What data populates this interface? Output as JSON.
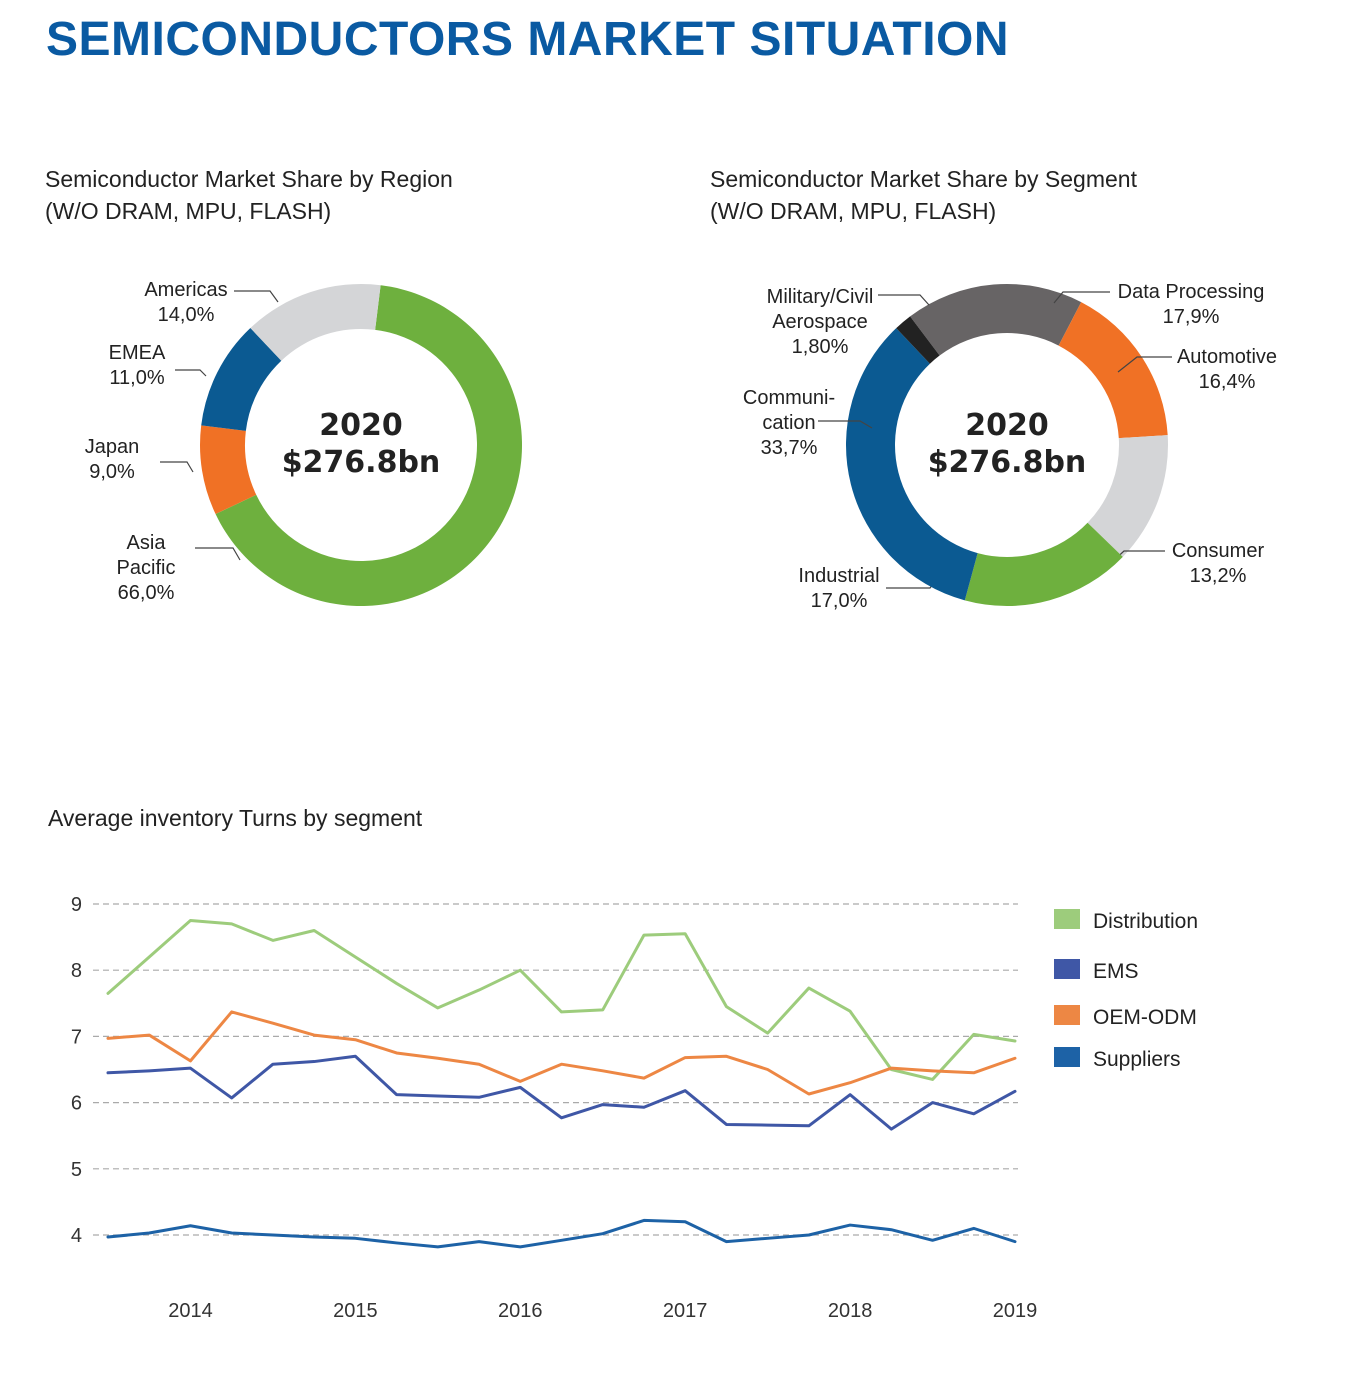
{
  "page_title": "SEMICONDUCTORS MARKET SITUATION",
  "colors": {
    "title": "#0a5aa2",
    "leader": "#444444",
    "grid": "#aaaaaa"
  },
  "chart_data": [
    {
      "type": "pie",
      "title": "Semiconductor Market Share by Region",
      "subtitle": "(W/O DRAM, MPU, FLASH)",
      "center_line1": "2020",
      "center_line2": "$276.8bn",
      "slices": [
        {
          "label_lines": [
            "Asia",
            "Pacific"
          ],
          "value_text": "66,0%",
          "value": 66.0,
          "color": "#6eb03e"
        },
        {
          "label_lines": [
            "Japan"
          ],
          "value_text": "9,0%",
          "value": 9.0,
          "color": "#f07125"
        },
        {
          "label_lines": [
            "EMEA"
          ],
          "value_text": "11,0%",
          "value": 11.0,
          "color": "#0b5a92"
        },
        {
          "label_lines": [
            "Americas"
          ],
          "value_text": "14,0%",
          "value": 14.0,
          "color": "#d4d5d7"
        }
      ]
    },
    {
      "type": "pie",
      "title": "Semiconductor Market Share by Segment",
      "subtitle": "(W/O DRAM, MPU, FLASH)",
      "center_line1": "2020",
      "center_line2": "$276.8bn",
      "slices": [
        {
          "label_lines": [
            "Data Processing"
          ],
          "value_text": "17,9%",
          "value": 17.9,
          "color": "#676465"
        },
        {
          "label_lines": [
            "Automotive"
          ],
          "value_text": "16,4%",
          "value": 16.4,
          "color": "#f07125"
        },
        {
          "label_lines": [
            "Consumer"
          ],
          "value_text": "13,2%",
          "value": 13.2,
          "color": "#d4d5d7"
        },
        {
          "label_lines": [
            "Industrial"
          ],
          "value_text": "17,0%",
          "value": 17.0,
          "color": "#6eb03e"
        },
        {
          "label_lines": [
            "Communi-",
            "cation"
          ],
          "value_text": "33,7%",
          "value": 33.7,
          "color": "#0b5a92"
        },
        {
          "label_lines": [
            "Military/Civil",
            "Aerospace"
          ],
          "value_text": "1,80%",
          "value": 1.8,
          "color": "#222222"
        }
      ]
    },
    {
      "type": "line",
      "title": "Average inventory Turns by segment",
      "xlabel": "",
      "ylabel": "",
      "x_ticks": [
        "2014",
        "2015",
        "2016",
        "2017",
        "2018",
        "2019"
      ],
      "xlim": [
        2013.5,
        2019.0
      ],
      "ylim": [
        4,
        9
      ],
      "y_ticks": [
        "4",
        "5",
        "6",
        "7",
        "8",
        "9"
      ],
      "legend_position": "right",
      "x": [
        2013.5,
        2013.75,
        2014.0,
        2014.25,
        2014.5,
        2014.75,
        2015.0,
        2015.25,
        2015.5,
        2015.75,
        2016.0,
        2016.25,
        2016.5,
        2016.75,
        2017.0,
        2017.25,
        2017.5,
        2017.75,
        2018.0,
        2018.25,
        2018.5,
        2018.75,
        2019.0
      ],
      "series": [
        {
          "name": "Distribution",
          "color": "#9dcc7c",
          "values": [
            7.65,
            8.2,
            8.75,
            8.7,
            8.45,
            8.6,
            8.2,
            7.8,
            7.43,
            7.7,
            8.0,
            7.37,
            7.4,
            8.53,
            8.55,
            7.45,
            7.05,
            7.73,
            7.38,
            6.5,
            6.35,
            7.03,
            6.93
          ]
        },
        {
          "name": "EMS",
          "color": "#3f57a6",
          "values": [
            6.45,
            6.48,
            6.52,
            6.07,
            6.58,
            6.62,
            6.7,
            6.12,
            6.1,
            6.08,
            6.23,
            5.77,
            5.97,
            5.93,
            6.18,
            5.67,
            5.66,
            5.65,
            6.12,
            5.6,
            6.0,
            5.83,
            6.17
          ]
        },
        {
          "name": "OEM-ODM",
          "color": "#ed8744",
          "values": [
            6.97,
            7.02,
            6.63,
            7.37,
            7.2,
            7.02,
            6.95,
            6.75,
            6.67,
            6.58,
            6.32,
            6.58,
            6.48,
            6.37,
            6.68,
            6.7,
            6.5,
            6.13,
            6.3,
            6.52,
            6.48,
            6.45,
            6.67
          ]
        },
        {
          "name": "Suppliers",
          "color": "#1d62a6",
          "values": [
            3.97,
            4.03,
            4.14,
            4.03,
            4.0,
            3.97,
            3.95,
            3.88,
            3.82,
            3.9,
            3.82,
            3.92,
            4.02,
            4.22,
            4.2,
            3.9,
            3.95,
            4.0,
            4.15,
            4.08,
            3.92,
            4.1,
            3.9
          ]
        }
      ]
    }
  ]
}
